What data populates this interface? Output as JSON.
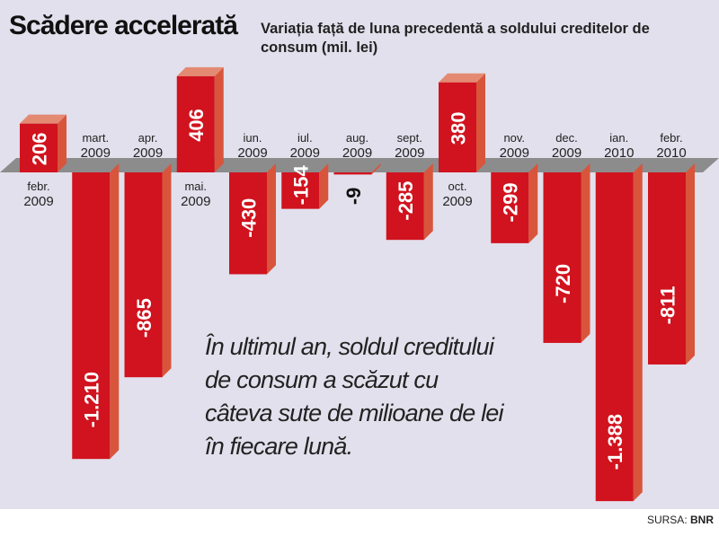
{
  "header": {
    "title": "Scădere accelerată",
    "subtitle": "Variația față de luna precedentă a soldului creditelor de consum (mil. lei)"
  },
  "note": {
    "lines": [
      "În ultimul an, soldul creditului",
      "de consum a scăzut cu",
      "câteva sute de milioane de lei",
      "în fiecare lună."
    ]
  },
  "source": {
    "label": "SURSA:",
    "value": "BNR"
  },
  "colors": {
    "bar_front": "#d0131e",
    "bar_side": "#d8553c",
    "bar_top": "#e48a72",
    "axis": "#8c8c8c",
    "background": "#e2e0ec"
  },
  "chart_data": {
    "type": "bar",
    "title": "Variația față de luna precedentă a soldului creditelor de consum (mil. lei)",
    "categories": [
      [
        "febr.",
        "2009"
      ],
      [
        "mart.",
        "2009"
      ],
      [
        "apr.",
        "2009"
      ],
      [
        "mai.",
        "2009"
      ],
      [
        "iun.",
        "2009"
      ],
      [
        "iul.",
        "2009"
      ],
      [
        "aug.",
        "2009"
      ],
      [
        "sept.",
        "2009"
      ],
      [
        "oct.",
        "2009"
      ],
      [
        "nov.",
        "2009"
      ],
      [
        "dec.",
        "2009"
      ],
      [
        "ian.",
        "2010"
      ],
      [
        "febr.",
        "2010"
      ]
    ],
    "values": [
      206,
      -1210,
      -865,
      406,
      -430,
      -154,
      -9,
      -285,
      380,
      -299,
      -720,
      -1388,
      -811
    ],
    "value_labels": [
      "206",
      "-1.210",
      "-865",
      "406",
      "-430",
      "-154",
      "-9",
      "-285",
      "380",
      "-299",
      "-720",
      "-1.388",
      "-811"
    ],
    "ylabel": "mil. lei",
    "grid": false
  }
}
